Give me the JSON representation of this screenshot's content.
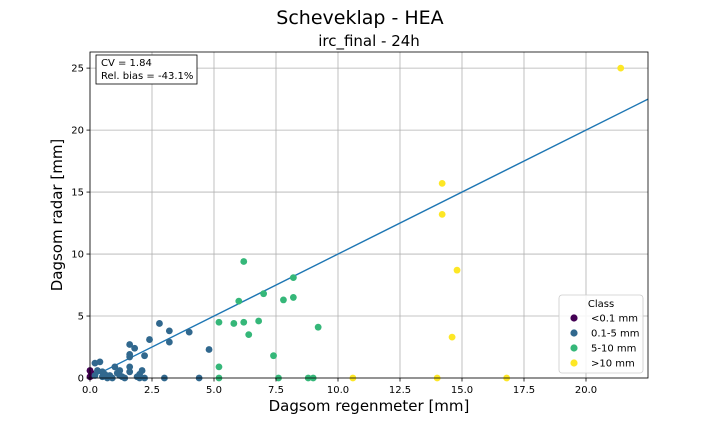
{
  "figure": {
    "suptitle": "Scheveklap - HEA"
  },
  "chart_data": {
    "type": "scatter",
    "title": "irc_final - 24h",
    "xlabel": "Dagsom regenmeter [mm]",
    "ylabel": "Dagsom radar [mm]",
    "xlim": [
      0,
      22.5
    ],
    "ylim": [
      0,
      26.3
    ],
    "xticks": [
      0.0,
      2.5,
      5.0,
      7.5,
      10.0,
      12.5,
      15.0,
      17.5,
      20.0
    ],
    "xtick_labels": [
      "0.0",
      "2.5",
      "5.0",
      "7.5",
      "10.0",
      "12.5",
      "15.0",
      "17.5",
      "20.0"
    ],
    "yticks": [
      0,
      5,
      10,
      15,
      20,
      25
    ],
    "ytick_labels": [
      "0",
      "5",
      "10",
      "15",
      "20",
      "25"
    ],
    "grid": true,
    "stats": {
      "cv": "CV = 1.84",
      "bias": "Rel. bias = -43.1%"
    },
    "fit_line": {
      "slope": 1.0,
      "intercept": 0.0,
      "color": "#1f77b4"
    },
    "legend": {
      "title": "Class",
      "placement": "lower right",
      "entries": [
        {
          "label": "<0.1 mm",
          "color": "#440154"
        },
        {
          "label": "0.1-5 mm",
          "color": "#31688e"
        },
        {
          "label": "5-10 mm",
          "color": "#35b779"
        },
        {
          "label": ">10 mm",
          "color": "#fde725"
        }
      ]
    },
    "series": [
      {
        "name": "<0.1 mm",
        "color": "#440154",
        "points": [
          [
            0.0,
            0.1
          ],
          [
            0.05,
            0.4
          ],
          [
            0.1,
            0.2
          ],
          [
            0.0,
            0.6
          ]
        ]
      },
      {
        "name": "0.1-5 mm",
        "color": "#31688e",
        "points": [
          [
            0.2,
            1.2
          ],
          [
            0.4,
            1.3
          ],
          [
            0.3,
            0.6
          ],
          [
            0.2,
            0.2
          ],
          [
            0.5,
            0.1
          ],
          [
            0.6,
            0.3
          ],
          [
            0.7,
            0.0
          ],
          [
            0.8,
            0.2
          ],
          [
            1.0,
            0.9
          ],
          [
            1.1,
            0.4
          ],
          [
            1.2,
            0.6
          ],
          [
            1.3,
            0.1
          ],
          [
            1.4,
            0.0
          ],
          [
            1.6,
            0.5
          ],
          [
            1.6,
            1.7
          ],
          [
            1.6,
            1.9
          ],
          [
            1.6,
            2.7
          ],
          [
            1.8,
            2.4
          ],
          [
            1.9,
            0.1
          ],
          [
            2.0,
            0.0
          ],
          [
            2.1,
            0.6
          ],
          [
            2.2,
            1.8
          ],
          [
            2.4,
            3.1
          ],
          [
            2.8,
            4.4
          ],
          [
            3.0,
            0.0
          ],
          [
            3.2,
            3.8
          ],
          [
            3.2,
            2.9
          ],
          [
            4.0,
            3.7
          ],
          [
            4.4,
            0.0
          ],
          [
            4.8,
            2.3
          ],
          [
            1.6,
            0.9
          ],
          [
            1.2,
            0.2
          ],
          [
            0.9,
            0.0
          ],
          [
            2.2,
            0.0
          ],
          [
            0.5,
            0.5
          ],
          [
            2.0,
            0.3
          ]
        ]
      },
      {
        "name": "5-10 mm",
        "color": "#35b779",
        "points": [
          [
            5.2,
            4.5
          ],
          [
            5.2,
            0.9
          ],
          [
            5.2,
            0.0
          ],
          [
            5.8,
            4.4
          ],
          [
            6.0,
            6.2
          ],
          [
            6.2,
            4.5
          ],
          [
            6.2,
            9.4
          ],
          [
            6.4,
            3.5
          ],
          [
            6.8,
            4.6
          ],
          [
            7.0,
            6.8
          ],
          [
            7.4,
            1.8
          ],
          [
            7.6,
            0.0
          ],
          [
            7.8,
            6.3
          ],
          [
            8.2,
            8.1
          ],
          [
            8.2,
            6.5
          ],
          [
            8.8,
            0.0
          ],
          [
            9.0,
            0.0
          ],
          [
            9.2,
            4.1
          ]
        ]
      },
      {
        "name": ">10 mm",
        "color": "#fde725",
        "points": [
          [
            10.6,
            0.0
          ],
          [
            14.0,
            0.0
          ],
          [
            14.2,
            15.7
          ],
          [
            14.2,
            13.2
          ],
          [
            14.6,
            3.3
          ],
          [
            14.8,
            8.7
          ],
          [
            16.8,
            0.0
          ],
          [
            21.4,
            25.0
          ]
        ]
      }
    ]
  }
}
